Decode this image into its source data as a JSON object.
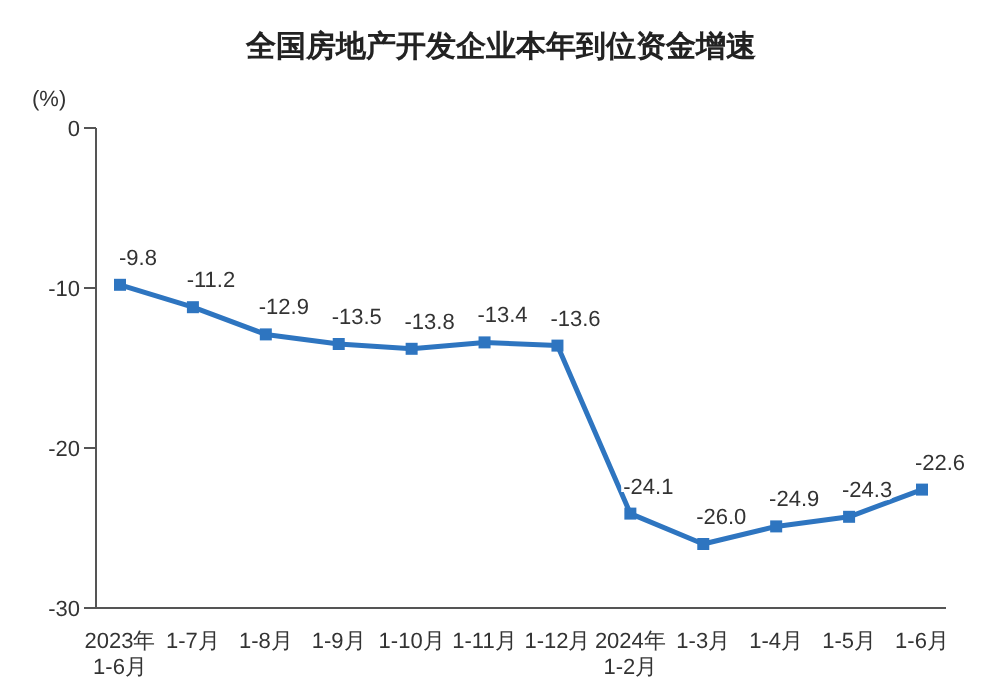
{
  "chart_data": {
    "type": "line",
    "title": "全国房地产开发企业本年到位资金增速",
    "ylabel": "(%)",
    "categories": [
      "2023年\n1-6月",
      "1-7月",
      "1-8月",
      "1-9月",
      "1-10月",
      "1-11月",
      "1-12月",
      "2024年\n1-2月",
      "1-3月",
      "1-4月",
      "1-5月",
      "1-6月"
    ],
    "series": [
      {
        "color": "#2e75c0",
        "values": [
          -9.8,
          -11.2,
          -12.9,
          -13.5,
          -13.8,
          -13.4,
          -13.6,
          -24.1,
          -26.0,
          -24.9,
          -24.3,
          -22.6
        ],
        "value_labels": [
          "-9.8",
          "-11.2",
          "-12.9",
          "-13.5",
          "-13.8",
          "-13.4",
          "-13.6",
          "-24.1",
          "-26.0",
          "-24.9",
          "-24.3",
          "-22.6"
        ]
      }
    ],
    "ylim": [
      -30,
      0
    ],
    "yticks": [
      0,
      -10,
      -20,
      -30
    ],
    "grid": false,
    "legend": false,
    "marker": "square",
    "line_style": "solid"
  }
}
